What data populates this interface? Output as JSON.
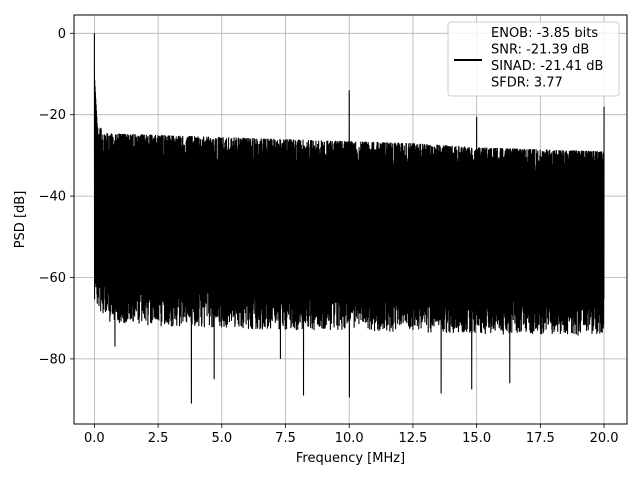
{
  "chart_data": {
    "type": "line",
    "xlabel": "Frequency [MHz]",
    "ylabel": "PSD [dB]",
    "xlim": [
      -0.8,
      20.9
    ],
    "ylim": [
      -96,
      4.5
    ],
    "xticks": [
      0.0,
      2.5,
      5.0,
      7.5,
      10.0,
      12.5,
      15.0,
      17.5,
      20.0
    ],
    "xtick_labels": [
      "0.0",
      "2.5",
      "5.0",
      "7.5",
      "10.0",
      "12.5",
      "15.0",
      "17.5",
      "20.0"
    ],
    "yticks": [
      0,
      -20,
      -40,
      -60,
      -80
    ],
    "ytick_labels": [
      "0",
      "−20",
      "−40",
      "−60",
      "−80"
    ],
    "grid": true,
    "legend_position": "top-right",
    "line_color": "#000000",
    "series": [
      {
        "name": "ENOB: -3.85 bits\nSNR: -21.39 dB\nSINAD: -21.41 dB\nSFDR: 3.77",
        "noise_top_envelope": [
          [
            0.0,
            -22
          ],
          [
            0.5,
            -24.5
          ],
          [
            2.5,
            -25
          ],
          [
            5.0,
            -25.5
          ],
          [
            7.5,
            -26
          ],
          [
            10.0,
            -26.5
          ],
          [
            12.5,
            -27
          ],
          [
            15.0,
            -28
          ],
          [
            17.5,
            -28.5
          ],
          [
            20.0,
            -29
          ]
        ],
        "noise_bottom_envelope": [
          [
            0.0,
            -58
          ],
          [
            0.5,
            -63
          ],
          [
            2.5,
            -64
          ],
          [
            5.0,
            -64.5
          ],
          [
            7.5,
            -65
          ],
          [
            10.0,
            -65
          ],
          [
            12.5,
            -65.5
          ],
          [
            15.0,
            -66
          ],
          [
            17.5,
            -66
          ],
          [
            20.0,
            -66.5
          ]
        ],
        "peaks": [
          {
            "x": 0.0,
            "y": 0.0
          },
          {
            "x": 10.0,
            "y": -14.0
          },
          {
            "x": 15.0,
            "y": -20.5
          },
          {
            "x": 20.0,
            "y": -18.0
          }
        ],
        "dips": [
          {
            "x": 3.8,
            "y": -91
          },
          {
            "x": 4.7,
            "y": -85
          },
          {
            "x": 8.2,
            "y": -89
          },
          {
            "x": 10.0,
            "y": -89.5
          },
          {
            "x": 13.6,
            "y": -88.5
          },
          {
            "x": 14.8,
            "y": -87.5
          },
          {
            "x": 16.3,
            "y": -86
          },
          {
            "x": 0.8,
            "y": -77
          },
          {
            "x": 7.3,
            "y": -80
          }
        ]
      }
    ],
    "legend_lines": [
      "ENOB: -3.85 bits",
      "SNR: -21.39 dB",
      "SINAD: -21.41 dB",
      "SFDR: 3.77"
    ]
  }
}
